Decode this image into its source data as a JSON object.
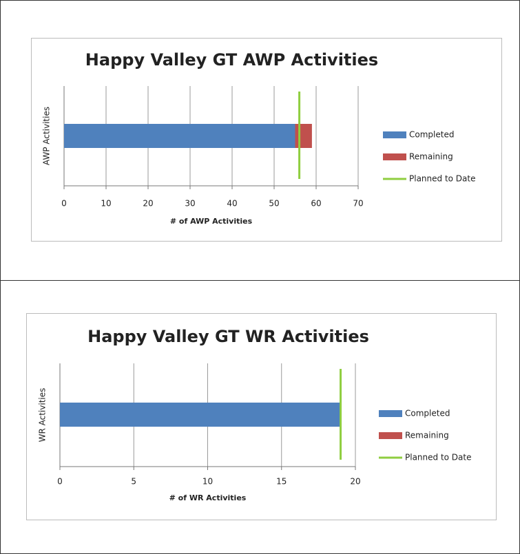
{
  "chart_data": [
    {
      "type": "bar",
      "orientation": "horizontal",
      "stacked": true,
      "title": "Happy Valley GT AWP Activities",
      "xlabel": "# of AWP Activities",
      "ylabel": "AWP Activities",
      "categories": [
        null
      ],
      "series": [
        {
          "name": "Completed",
          "type": "bar",
          "color": "#4f81bd",
          "values": [
            55
          ]
        },
        {
          "name": "Remaining",
          "type": "bar",
          "color": "#c0504d",
          "values": [
            4
          ]
        },
        {
          "name": "Planned to Date",
          "type": "line",
          "color": "#8fce3f",
          "values": [
            56
          ]
        }
      ],
      "xlim": [
        0,
        70
      ],
      "xticks": [
        0,
        10,
        20,
        30,
        40,
        50,
        60,
        70
      ],
      "grid": true,
      "legend": "right"
    },
    {
      "type": "bar",
      "orientation": "horizontal",
      "stacked": true,
      "title": "Happy Valley GT WR Activities",
      "xlabel": "# of WR Activities",
      "ylabel": "WR Activities",
      "categories": [
        null
      ],
      "series": [
        {
          "name": "Completed",
          "type": "bar",
          "color": "#4f81bd",
          "values": [
            19
          ]
        },
        {
          "name": "Remaining",
          "type": "bar",
          "color": "#c0504d",
          "values": [
            0
          ]
        },
        {
          "name": "Planned to Date",
          "type": "line",
          "color": "#8fce3f",
          "values": [
            19
          ]
        }
      ],
      "xlim": [
        0,
        20
      ],
      "xticks": [
        0,
        5,
        10,
        15,
        20
      ],
      "grid": true,
      "legend": "right"
    }
  ]
}
